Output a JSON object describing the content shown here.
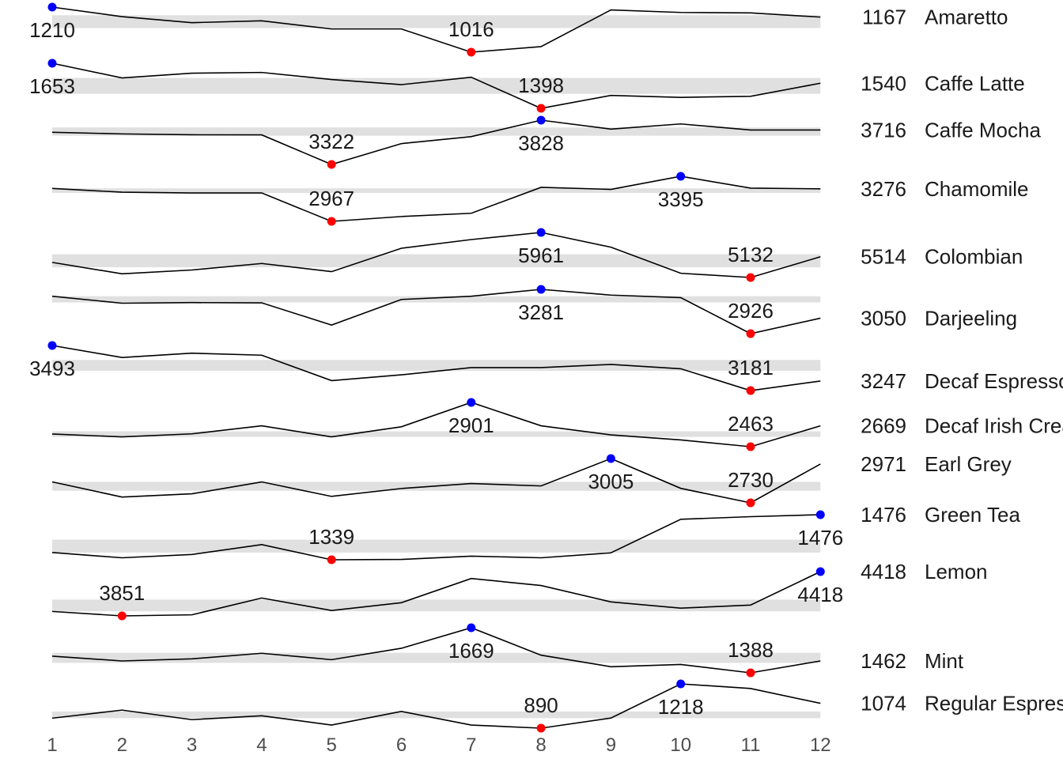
{
  "chart_data": {
    "type": "line",
    "x": [
      1,
      2,
      3,
      4,
      5,
      6,
      7,
      8,
      9,
      10,
      11,
      12
    ],
    "x_tick_labels": [
      "1",
      "2",
      "3",
      "4",
      "5",
      "6",
      "7",
      "8",
      "9",
      "10",
      "11",
      "12"
    ],
    "max_color": "#0000ff",
    "min_color": "#ff0000",
    "band_color": "#e0e0e0",
    "line_color": "#000000",
    "series": [
      {
        "name": "Amaretto",
        "values": [
          1210,
          1169,
          1143,
          1151,
          1116,
          1116,
          1016,
          1040,
          1198,
          1187,
          1185,
          1167
        ],
        "band": [
          1120,
          1175
        ],
        "max": {
          "x": 1,
          "value": 1210
        },
        "min": {
          "x": 7,
          "value": 1016
        },
        "last": 1167
      },
      {
        "name": "Caffe Latte",
        "values": [
          1653,
          1570,
          1597,
          1601,
          1561,
          1532,
          1574,
          1398,
          1471,
          1460,
          1466,
          1540
        ],
        "band": [
          1480,
          1570
        ],
        "max": {
          "x": 1,
          "value": 1653
        },
        "min": {
          "x": 8,
          "value": 1398
        },
        "last": 1540
      },
      {
        "name": "Caffe Mocha",
        "values": [
          3690,
          3671,
          3661,
          3660,
          3322,
          3560,
          3640,
          3828,
          3726,
          3785,
          3716,
          3716
        ],
        "band": [
          3650,
          3745
        ],
        "max": {
          "x": 8,
          "value": 3828
        },
        "min": {
          "x": 5,
          "value": 3322
        },
        "last": 3716
      },
      {
        "name": "Chamomile",
        "values": [
          3280,
          3244,
          3237,
          3237,
          2967,
          3013,
          3044,
          3290,
          3271,
          3395,
          3283,
          3276
        ],
        "band": [
          3237,
          3281
        ],
        "max": {
          "x": 10,
          "value": 3395
        },
        "min": {
          "x": 5,
          "value": 2967
        },
        "last": 3276
      },
      {
        "name": "Colombian",
        "values": [
          5410,
          5200,
          5270,
          5390,
          5240,
          5670,
          5830,
          5961,
          5690,
          5210,
          5132,
          5514
        ],
        "band": [
          5320,
          5560
        ],
        "max": {
          "x": 8,
          "value": 5961
        },
        "min": {
          "x": 11,
          "value": 5132
        },
        "last": 5514
      },
      {
        "name": "Darjeeling",
        "values": [
          3226,
          3170,
          3175,
          3173,
          2995,
          3200,
          3226,
          3281,
          3235,
          3215,
          2926,
          3050
        ],
        "band": [
          3176,
          3226
        ],
        "max": {
          "x": 8,
          "value": 3281
        },
        "min": {
          "x": 11,
          "value": 2926
        },
        "last": 3050
      },
      {
        "name": "Decaf Espresso",
        "values": [
          3493,
          3410,
          3440,
          3426,
          3250,
          3290,
          3340,
          3340,
          3362,
          3332,
          3181,
          3247
        ],
        "band": [
          3318,
          3393
        ],
        "max": {
          "x": 1,
          "value": 3493
        },
        "min": {
          "x": 11,
          "value": 3181
        },
        "last": 3247
      },
      {
        "name": "Decaf Irish Cream",
        "values": [
          2589,
          2560,
          2590,
          2670,
          2560,
          2660,
          2901,
          2670,
          2580,
          2530,
          2463,
          2669
        ],
        "band": [
          2560,
          2615
        ],
        "max": {
          "x": 7,
          "value": 2901
        },
        "min": {
          "x": 11,
          "value": 2463
        },
        "last": 2669
      },
      {
        "name": "Earl Grey",
        "values": [
          2860,
          2766,
          2786,
          2860,
          2770,
          2819,
          2850,
          2835,
          3005,
          2820,
          2730,
          2971
        ],
        "band": [
          2805,
          2860
        ],
        "max": {
          "x": 9,
          "value": 3005
        },
        "min": {
          "x": 11,
          "value": 2730
        },
        "last": 2971
      },
      {
        "name": "Green Tea",
        "values": [
          1361,
          1345,
          1355,
          1385,
          1339,
          1340,
          1350,
          1345,
          1360,
          1462,
          1470,
          1476
        ],
        "band": [
          1361,
          1400
        ],
        "max": {
          "x": 12,
          "value": 1476
        },
        "min": {
          "x": 5,
          "value": 1339
        },
        "last": 1476
      },
      {
        "name": "Lemon",
        "values": [
          3908,
          3851,
          3865,
          4080,
          3920,
          4020,
          4330,
          4240,
          4030,
          3950,
          3990,
          4418
        ],
        "band": [
          3910,
          4060
        ],
        "max": {
          "x": 12,
          "value": 4418
        },
        "min": {
          "x": 2,
          "value": 3851
        },
        "last": 4418
      },
      {
        "name": "Mint",
        "values": [
          1492,
          1462,
          1475,
          1510,
          1470,
          1541,
          1669,
          1498,
          1426,
          1440,
          1388,
          1462
        ],
        "band": [
          1450,
          1513
        ],
        "max": {
          "x": 7,
          "value": 1669
        },
        "min": {
          "x": 11,
          "value": 1388
        },
        "last": 1462
      },
      {
        "name": "Regular Espresso",
        "values": [
          964,
          1024,
          953,
          982,
          913,
          1014,
          913,
          890,
          965,
          1218,
          1184,
          1074
        ],
        "band": [
          964,
          1014
        ],
        "max": {
          "x": 10,
          "value": 1218
        },
        "min": {
          "x": 8,
          "value": 890
        },
        "last": 1074
      }
    ]
  }
}
